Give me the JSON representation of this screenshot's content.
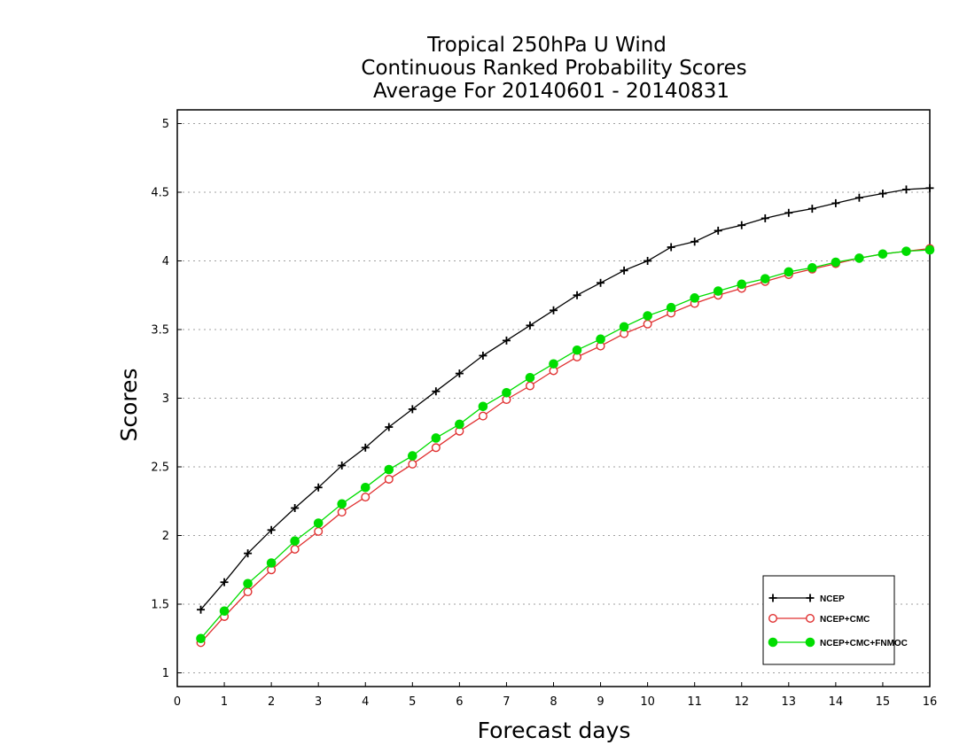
{
  "chart_data": {
    "type": "line",
    "title": [
      "Tropical 250hPa U Wind",
      "Continuous Ranked Probability Scores",
      "Average For 20140601 - 20140831"
    ],
    "xlabel": "Forecast days",
    "ylabel": "Scores",
    "xlim": [
      0,
      16
    ],
    "ylim": [
      0.9,
      5.1
    ],
    "xticks": [
      "0",
      "1",
      "2",
      "3",
      "4",
      "5",
      "6",
      "7",
      "8",
      "9",
      "10",
      "11",
      "12",
      "13",
      "14",
      "15",
      "16"
    ],
    "yticks": [
      "1",
      "1.5",
      "2",
      "2.5",
      "3",
      "3.5",
      "4",
      "4.5",
      "5"
    ],
    "ytick_values": [
      1,
      1.5,
      2,
      2.5,
      3,
      3.5,
      4,
      4.5,
      5
    ],
    "grid": true,
    "legend_position": "bottom-right",
    "x": [
      0.5,
      1,
      1.5,
      2,
      2.5,
      3,
      3.5,
      4,
      4.5,
      5,
      5.5,
      6,
      6.5,
      7,
      7.5,
      8,
      8.5,
      9,
      9.5,
      10,
      10.5,
      11,
      11.5,
      12,
      12.5,
      13,
      13.5,
      14,
      14.5,
      15,
      15.5,
      16
    ],
    "series": [
      {
        "name": "NCEP",
        "color": "#000000",
        "marker": "plus",
        "values": [
          1.46,
          1.66,
          1.87,
          2.04,
          2.2,
          2.35,
          2.51,
          2.64,
          2.79,
          2.92,
          3.05,
          3.18,
          3.31,
          3.42,
          3.53,
          3.64,
          3.75,
          3.84,
          3.93,
          4.0,
          4.1,
          4.14,
          4.22,
          4.26,
          4.31,
          4.35,
          4.38,
          4.42,
          4.46,
          4.49,
          4.52,
          4.53
        ]
      },
      {
        "name": "NCEP+CMC",
        "color": "#e03030",
        "marker": "open-circle",
        "values": [
          1.22,
          1.41,
          1.59,
          1.75,
          1.9,
          2.03,
          2.17,
          2.28,
          2.41,
          2.52,
          2.64,
          2.76,
          2.87,
          2.99,
          3.09,
          3.2,
          3.3,
          3.38,
          3.47,
          3.54,
          3.62,
          3.69,
          3.75,
          3.8,
          3.85,
          3.9,
          3.94,
          3.98,
          4.02,
          4.05,
          4.07,
          4.09
        ]
      },
      {
        "name": "NCEP+CMC+FNMOC",
        "color": "#00dd00",
        "marker": "filled-circle",
        "values": [
          1.25,
          1.45,
          1.65,
          1.8,
          1.96,
          2.09,
          2.23,
          2.35,
          2.48,
          2.58,
          2.71,
          2.81,
          2.94,
          3.04,
          3.15,
          3.25,
          3.35,
          3.43,
          3.52,
          3.6,
          3.66,
          3.73,
          3.78,
          3.83,
          3.87,
          3.92,
          3.95,
          3.99,
          4.02,
          4.05,
          4.07,
          4.08
        ]
      }
    ]
  }
}
